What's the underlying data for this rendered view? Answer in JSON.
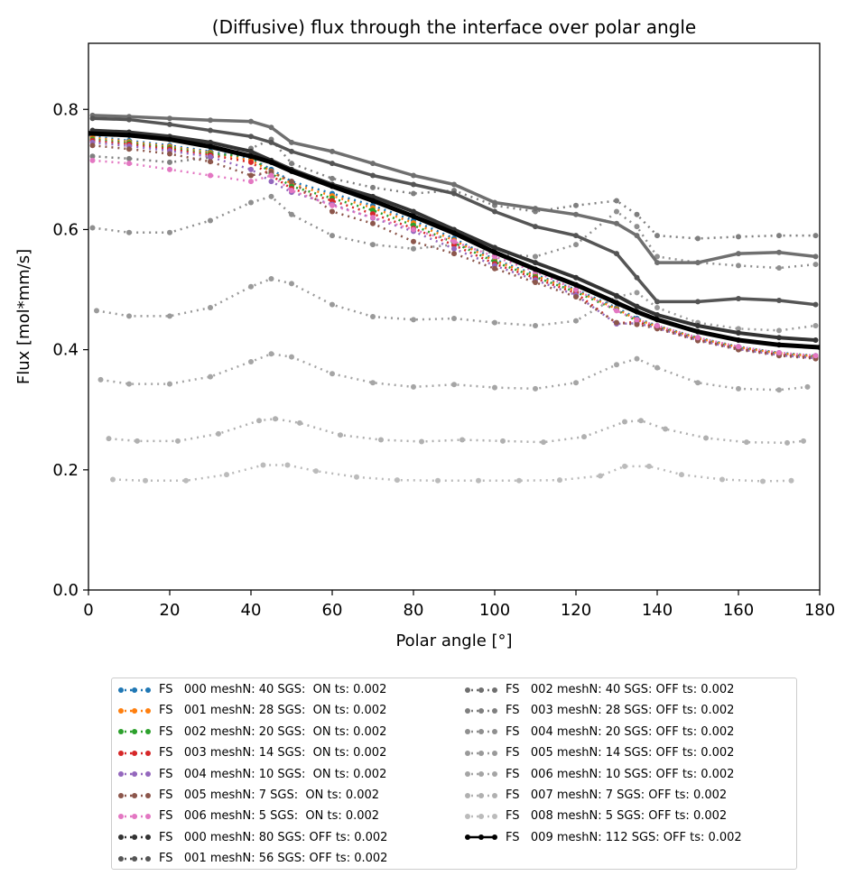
{
  "chart_data": {
    "type": "line",
    "title": "(Diffusive) flux through the interface over polar angle",
    "xlabel": "Polar angle [°]",
    "ylabel": "Flux [mol*mm/s]",
    "xlim": [
      0,
      180
    ],
    "ylim": [
      0,
      0.91
    ],
    "xticks": [
      0,
      20,
      40,
      60,
      80,
      100,
      120,
      140,
      160,
      180
    ],
    "yticks": [
      0.0,
      0.2,
      0.4,
      0.6,
      0.8
    ],
    "ytick_labels": [
      "0.0",
      "0.2",
      "0.4",
      "0.6",
      "0.8"
    ],
    "xtick_labels": [
      "0",
      "20",
      "40",
      "60",
      "80",
      "100",
      "120",
      "140",
      "160",
      "180"
    ],
    "grid": false,
    "legend_placement": "below",
    "series": [
      {
        "name": "FS   000 meshN: 40 SGS:  ON ts: 0.002",
        "color": "#1f77b4",
        "x": [
          1,
          10,
          20,
          30,
          40,
          45,
          50,
          60,
          70,
          80,
          90,
          100,
          110,
          120,
          130,
          135,
          140,
          150,
          160,
          170,
          179
        ],
        "y": [
          0.755,
          0.748,
          0.74,
          0.73,
          0.718,
          0.7,
          0.68,
          0.66,
          0.64,
          0.615,
          0.585,
          0.55,
          0.525,
          0.5,
          0.47,
          0.452,
          0.44,
          0.42,
          0.405,
          0.395,
          0.39
        ]
      },
      {
        "name": "FS   001 meshN: 28 SGS:  ON ts: 0.002",
        "color": "#ff7f0e",
        "x": [
          1,
          10,
          20,
          30,
          40,
          45,
          50,
          60,
          70,
          80,
          90,
          100,
          110,
          120,
          130,
          135,
          140,
          150,
          160,
          170,
          179
        ],
        "y": [
          0.753,
          0.746,
          0.738,
          0.728,
          0.715,
          0.697,
          0.676,
          0.656,
          0.636,
          0.611,
          0.582,
          0.548,
          0.523,
          0.498,
          0.468,
          0.45,
          0.439,
          0.419,
          0.404,
          0.394,
          0.389
        ]
      },
      {
        "name": "FS   002 meshN: 20 SGS:  ON ts: 0.002",
        "color": "#2ca02c",
        "x": [
          1,
          10,
          20,
          30,
          40,
          45,
          50,
          60,
          70,
          80,
          90,
          100,
          110,
          120,
          130,
          135,
          140,
          150,
          160,
          170,
          179
        ],
        "y": [
          0.75,
          0.744,
          0.736,
          0.726,
          0.722,
          0.693,
          0.672,
          0.652,
          0.632,
          0.607,
          0.578,
          0.546,
          0.521,
          0.496,
          0.466,
          0.448,
          0.438,
          0.418,
          0.403,
          0.393,
          0.388
        ]
      },
      {
        "name": "FS   003 meshN: 14 SGS:  ON ts: 0.002",
        "color": "#d62728",
        "x": [
          1,
          10,
          20,
          30,
          40,
          45,
          50,
          60,
          70,
          80,
          90,
          100,
          110,
          120,
          130,
          135,
          140,
          150,
          160,
          170,
          179
        ],
        "y": [
          0.748,
          0.742,
          0.734,
          0.724,
          0.712,
          0.69,
          0.668,
          0.648,
          0.626,
          0.602,
          0.574,
          0.543,
          0.519,
          0.494,
          0.444,
          0.446,
          0.437,
          0.417,
          0.402,
          0.392,
          0.387
        ]
      },
      {
        "name": "FS   004 meshN: 10 SGS:  ON ts: 0.002",
        "color": "#9467bd",
        "x": [
          1,
          10,
          20,
          30,
          40,
          45,
          50,
          60,
          70,
          80,
          90,
          100,
          110,
          120,
          130,
          135,
          140,
          150,
          160,
          170,
          179
        ],
        "y": [
          0.745,
          0.739,
          0.731,
          0.721,
          0.7,
          0.68,
          0.662,
          0.642,
          0.619,
          0.597,
          0.568,
          0.54,
          0.516,
          0.491,
          0.443,
          0.444,
          0.436,
          0.416,
          0.401,
          0.391,
          0.386
        ]
      },
      {
        "name": "FS   005 meshN: 7 SGS:  ON ts: 0.002",
        "color": "#8c564b",
        "x": [
          1,
          10,
          20,
          30,
          40,
          45,
          50,
          60,
          70,
          80,
          90,
          100,
          110,
          120,
          130,
          135,
          140,
          150,
          160,
          170,
          179
        ],
        "y": [
          0.74,
          0.734,
          0.726,
          0.713,
          0.69,
          0.696,
          0.68,
          0.63,
          0.61,
          0.58,
          0.56,
          0.535,
          0.512,
          0.488,
          0.445,
          0.442,
          0.435,
          0.415,
          0.4,
          0.39,
          0.385
        ]
      },
      {
        "name": "FS   006 meshN: 5 SGS:  ON ts: 0.002",
        "color": "#e377c2",
        "x": [
          1,
          10,
          20,
          30,
          40,
          45,
          50,
          60,
          70,
          80,
          90,
          100,
          110,
          120,
          130,
          135,
          140,
          150,
          160,
          170,
          179
        ],
        "y": [
          0.715,
          0.71,
          0.7,
          0.69,
          0.68,
          0.69,
          0.665,
          0.64,
          0.62,
          0.6,
          0.58,
          0.555,
          0.53,
          0.5,
          0.465,
          0.45,
          0.44,
          0.42,
          0.405,
          0.395,
          0.39
        ]
      },
      {
        "name": "FS   000 meshN: 80 SGS: OFF ts: 0.002",
        "color": "#333333",
        "x": [
          1,
          10,
          20,
          30,
          40,
          45,
          50,
          60,
          70,
          80,
          90,
          100,
          110,
          120,
          130,
          135,
          140,
          150,
          160,
          170,
          179
        ],
        "y": [
          0.765,
          0.762,
          0.755,
          0.745,
          0.73,
          0.715,
          0.7,
          0.675,
          0.655,
          0.63,
          0.6,
          0.57,
          0.545,
          0.52,
          0.49,
          0.472,
          0.458,
          0.44,
          0.428,
          0.42,
          0.416
        ]
      },
      {
        "name": "FS   001 meshN: 56 SGS: OFF ts: 0.002",
        "color": "#555555",
        "x": [
          1,
          10,
          20,
          30,
          40,
          45,
          50,
          60,
          70,
          80,
          90,
          100,
          110,
          120,
          130,
          135,
          140,
          150,
          160,
          170,
          179
        ],
        "y": [
          0.785,
          0.783,
          0.775,
          0.765,
          0.755,
          0.745,
          0.73,
          0.71,
          0.69,
          0.675,
          0.66,
          0.63,
          0.605,
          0.59,
          0.56,
          0.52,
          0.48,
          0.48,
          0.485,
          0.482,
          0.475
        ]
      },
      {
        "name": "FS   002 meshN: 40 SGS: OFF ts: 0.002",
        "color": "#6f6f6f",
        "x": [
          1,
          10,
          20,
          30,
          40,
          45,
          50,
          60,
          70,
          80,
          90,
          100,
          110,
          120,
          130,
          135,
          140,
          150,
          160,
          170,
          179
        ],
        "y": [
          0.79,
          0.788,
          0.785,
          0.782,
          0.78,
          0.77,
          0.745,
          0.73,
          0.71,
          0.69,
          0.675,
          0.645,
          0.635,
          0.625,
          0.61,
          0.59,
          0.545,
          0.545,
          0.56,
          0.562,
          0.555
        ]
      },
      {
        "name": "FS   003 meshN: 28 SGS: OFF ts: 0.002",
        "color": "#7f7f7f",
        "x": [
          1,
          10,
          20,
          30,
          40,
          45,
          50,
          60,
          70,
          80,
          90,
          100,
          110,
          120,
          130,
          135,
          140,
          150,
          160,
          170,
          179
        ],
        "y": [
          0.722,
          0.718,
          0.712,
          0.72,
          0.735,
          0.75,
          0.71,
          0.685,
          0.67,
          0.66,
          0.665,
          0.64,
          0.63,
          0.64,
          0.648,
          0.625,
          0.59,
          0.585,
          0.588,
          0.59,
          0.59
        ]
      },
      {
        "name": "FS   004 meshN: 20 SGS: OFF ts: 0.002",
        "color": "#8f8f8f",
        "x": [
          1,
          10,
          20,
          30,
          40,
          45,
          50,
          60,
          70,
          80,
          90,
          100,
          110,
          120,
          130,
          135,
          140,
          150,
          160,
          170,
          179
        ],
        "y": [
          0.603,
          0.595,
          0.595,
          0.615,
          0.645,
          0.655,
          0.625,
          0.59,
          0.575,
          0.568,
          0.575,
          0.56,
          0.555,
          0.575,
          0.63,
          0.605,
          0.555,
          0.545,
          0.54,
          0.536,
          0.542
        ]
      },
      {
        "name": "FS   005 meshN: 14 SGS: OFF ts: 0.002",
        "color": "#9a9a9a",
        "x": [
          2,
          10,
          20,
          30,
          40,
          45,
          50,
          60,
          70,
          80,
          90,
          100,
          110,
          120,
          130,
          135,
          140,
          150,
          160,
          170,
          179
        ],
        "y": [
          0.465,
          0.456,
          0.456,
          0.47,
          0.505,
          0.518,
          0.51,
          0.475,
          0.455,
          0.45,
          0.452,
          0.445,
          0.44,
          0.448,
          0.488,
          0.495,
          0.47,
          0.445,
          0.435,
          0.432,
          0.44
        ]
      },
      {
        "name": "FS   006 meshN: 10 SGS: OFF ts: 0.002",
        "color": "#a5a5a5",
        "x": [
          3,
          10,
          20,
          30,
          40,
          45,
          50,
          60,
          70,
          80,
          90,
          100,
          110,
          120,
          130,
          135,
          140,
          150,
          160,
          170,
          177
        ],
        "y": [
          0.35,
          0.343,
          0.343,
          0.355,
          0.38,
          0.393,
          0.388,
          0.36,
          0.345,
          0.338,
          0.342,
          0.337,
          0.335,
          0.345,
          0.375,
          0.385,
          0.37,
          0.345,
          0.335,
          0.333,
          0.338
        ]
      },
      {
        "name": "FS   007 meshN: 7 SGS: OFF ts: 0.002",
        "color": "#b0b0b0",
        "x": [
          5,
          12,
          22,
          32,
          42,
          46,
          52,
          62,
          72,
          82,
          92,
          102,
          112,
          122,
          132,
          136,
          142,
          152,
          162,
          172,
          176
        ],
        "y": [
          0.252,
          0.248,
          0.248,
          0.26,
          0.282,
          0.285,
          0.278,
          0.258,
          0.25,
          0.247,
          0.25,
          0.248,
          0.246,
          0.255,
          0.28,
          0.282,
          0.268,
          0.253,
          0.246,
          0.245,
          0.248
        ]
      },
      {
        "name": "FS   008 meshN: 5 SGS: OFF ts: 0.002",
        "color": "#bbbbbb",
        "x": [
          6,
          14,
          24,
          34,
          43,
          49,
          56,
          66,
          76,
          86,
          96,
          106,
          116,
          126,
          132,
          138,
          146,
          156,
          166,
          173
        ],
        "y": [
          0.184,
          0.182,
          0.182,
          0.192,
          0.208,
          0.208,
          0.198,
          0.188,
          0.183,
          0.182,
          0.182,
          0.182,
          0.183,
          0.19,
          0.206,
          0.206,
          0.192,
          0.184,
          0.181,
          0.182
        ]
      },
      {
        "name": "FS   009 meshN: 112 SGS: OFF ts: 0.002",
        "color": "#000000",
        "x": [
          0,
          10,
          20,
          30,
          40,
          45,
          50,
          60,
          70,
          80,
          90,
          100,
          110,
          120,
          130,
          135,
          140,
          150,
          160,
          170,
          180
        ],
        "y": [
          0.76,
          0.757,
          0.75,
          0.738,
          0.722,
          0.712,
          0.697,
          0.672,
          0.648,
          0.622,
          0.594,
          0.562,
          0.534,
          0.508,
          0.478,
          0.463,
          0.45,
          0.43,
          0.416,
          0.408,
          0.404
        ]
      }
    ]
  }
}
